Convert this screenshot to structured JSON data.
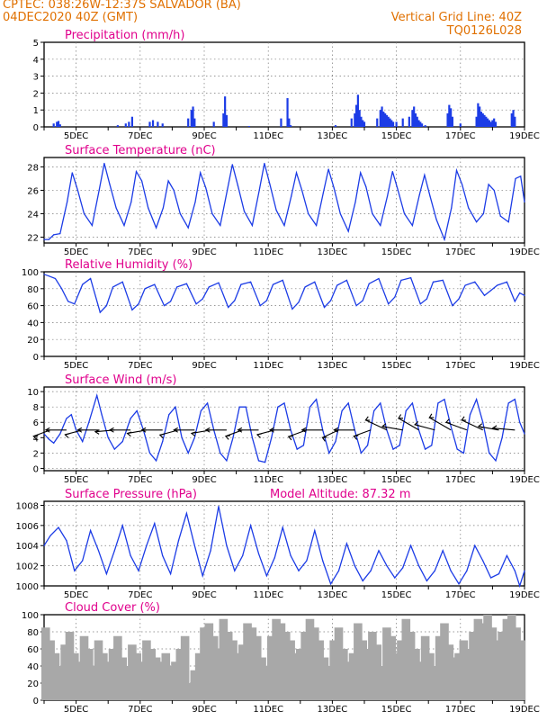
{
  "header": {
    "line1": "CPTEC:   038:26W-12:37S   SALVADOR (BA)",
    "line2": "04DEC2020 40Z (GMT)",
    "grid_note": "Vertical Grid Line: 40Z",
    "run_code": "TQ0126L028",
    "model_altitude": "Model Altitude: 87.32 m",
    "color_orange": "#e07000",
    "color_magenta": "#e0008c",
    "color_series": "#1c3ce6",
    "color_cloud": "#a8a8a8"
  },
  "x_axis": {
    "day_range": [
      4,
      19
    ],
    "tick_labels": [
      "5DEC",
      "7DEC",
      "9DEC",
      "11DEC",
      "13DEC",
      "15DEC",
      "17DEC",
      "19DEC"
    ],
    "tick_days": [
      5,
      7,
      9,
      11,
      13,
      15,
      17,
      19
    ]
  },
  "chart_data": [
    {
      "type": "bar",
      "title": "Precipitation (mm/h)",
      "ylim": [
        0,
        5
      ],
      "yticks": [
        "0",
        "1",
        "2",
        "3",
        "4",
        "5"
      ],
      "grid": true,
      "x": [
        4.3,
        4.4,
        4.45,
        4.5,
        6.3,
        6.55,
        6.65,
        6.75,
        7.3,
        7.4,
        7.55,
        7.7,
        8.5,
        8.6,
        8.65,
        8.7,
        9.3,
        9.6,
        9.65,
        9.7,
        10.4,
        11.4,
        11.6,
        11.65,
        11.7,
        13.1,
        13.6,
        13.7,
        13.75,
        13.8,
        13.85,
        13.9,
        13.95,
        14.0,
        14.4,
        14.5,
        14.55,
        14.6,
        14.65,
        14.7,
        14.75,
        14.8,
        14.85,
        14.9,
        15.0,
        15.2,
        15.4,
        15.5,
        15.55,
        15.6,
        15.65,
        15.7,
        15.75,
        15.8,
        15.9,
        16.6,
        16.65,
        16.7,
        16.75,
        17.0,
        17.5,
        17.55,
        17.6,
        17.65,
        17.7,
        17.75,
        17.8,
        17.85,
        17.9,
        17.95,
        18.0,
        18.05,
        18.1,
        18.6,
        18.65,
        18.7
      ],
      "values": [
        0.2,
        0.3,
        0.35,
        0.15,
        0.1,
        0.2,
        0.3,
        0.6,
        0.3,
        0.4,
        0.3,
        0.2,
        0.5,
        1.0,
        1.2,
        0.5,
        0.3,
        0.8,
        1.8,
        0.7,
        0.05,
        0.5,
        1.7,
        0.5,
        0.1,
        0.1,
        0.5,
        0.8,
        1.3,
        1.9,
        1.0,
        0.6,
        0.4,
        0.3,
        0.5,
        1.0,
        1.2,
        0.9,
        0.8,
        0.7,
        0.6,
        0.5,
        0.4,
        0.3,
        0.3,
        0.5,
        0.6,
        1.0,
        1.2,
        0.8,
        0.6,
        0.4,
        0.3,
        0.2,
        0.1,
        0.8,
        1.3,
        1.1,
        0.6,
        0.2,
        0.6,
        1.4,
        1.2,
        0.9,
        0.8,
        0.7,
        0.6,
        0.5,
        0.4,
        0.3,
        0.4,
        0.5,
        0.3,
        0.8,
        1.0,
        0.6
      ]
    },
    {
      "type": "line",
      "title": "Surface Temperature (nC)",
      "ylim": [
        21.5,
        28.8
      ],
      "yticks": [
        "22",
        "24",
        "26",
        "28"
      ],
      "ytick_values": [
        22,
        24,
        26,
        28
      ],
      "grid": true,
      "x": [
        4.0,
        4.15,
        4.3,
        4.5,
        4.72,
        4.88,
        5.05,
        5.25,
        5.5,
        5.72,
        5.88,
        6.05,
        6.25,
        6.5,
        6.72,
        6.88,
        7.05,
        7.25,
        7.5,
        7.72,
        7.88,
        8.05,
        8.25,
        8.5,
        8.72,
        8.88,
        9.05,
        9.25,
        9.5,
        9.72,
        9.88,
        10.05,
        10.25,
        10.5,
        10.72,
        10.88,
        11.05,
        11.25,
        11.5,
        11.72,
        11.88,
        12.05,
        12.25,
        12.5,
        12.72,
        12.88,
        13.05,
        13.25,
        13.5,
        13.72,
        13.88,
        14.05,
        14.25,
        14.5,
        14.72,
        14.88,
        15.05,
        15.25,
        15.5,
        15.72,
        15.88,
        16.05,
        16.25,
        16.5,
        16.72,
        16.88,
        17.05,
        17.25,
        17.5,
        17.72,
        17.88,
        18.05,
        18.25,
        18.5,
        18.72,
        18.88,
        19.0
      ],
      "values": [
        21.8,
        21.8,
        22.2,
        22.3,
        25.0,
        27.5,
        26.0,
        24.0,
        23.0,
        26.0,
        28.3,
        26.5,
        24.5,
        23.0,
        25.0,
        27.6,
        26.8,
        24.5,
        22.8,
        24.5,
        26.8,
        26.0,
        24.0,
        22.8,
        25.0,
        27.5,
        26.2,
        24.0,
        23.0,
        26.0,
        28.2,
        26.4,
        24.2,
        23.0,
        26.0,
        28.3,
        26.5,
        24.3,
        23.0,
        25.5,
        27.5,
        26.0,
        24.0,
        23.0,
        25.8,
        27.8,
        26.2,
        24.0,
        22.5,
        25.0,
        27.5,
        26.3,
        24.0,
        23.0,
        25.5,
        27.6,
        26.0,
        24.0,
        23.0,
        25.6,
        27.3,
        25.5,
        23.5,
        21.8,
        24.5,
        27.7,
        26.5,
        24.5,
        23.3,
        24.0,
        26.5,
        26.0,
        23.8,
        23.3,
        27.0,
        27.2,
        25.0
      ]
    },
    {
      "type": "line",
      "title": "Relative Humidity (%)",
      "ylim": [
        0,
        100
      ],
      "yticks": [
        "0",
        "20",
        "40",
        "60",
        "80",
        "100"
      ],
      "ytick_values": [
        0,
        20,
        40,
        60,
        80,
        100
      ],
      "grid": true,
      "x": [
        4.0,
        4.15,
        4.35,
        4.55,
        4.75,
        4.95,
        5.2,
        5.45,
        5.75,
        5.95,
        6.15,
        6.45,
        6.75,
        6.95,
        7.15,
        7.45,
        7.75,
        7.95,
        8.15,
        8.45,
        8.75,
        8.95,
        9.15,
        9.45,
        9.75,
        9.95,
        10.15,
        10.45,
        10.75,
        10.95,
        11.15,
        11.45,
        11.75,
        11.95,
        12.15,
        12.45,
        12.75,
        12.95,
        13.15,
        13.45,
        13.75,
        13.95,
        14.15,
        14.45,
        14.75,
        14.95,
        15.15,
        15.45,
        15.75,
        15.95,
        16.15,
        16.45,
        16.75,
        16.95,
        17.15,
        17.45,
        17.75,
        17.95,
        18.15,
        18.45,
        18.7,
        18.85,
        19.0
      ],
      "values": [
        97,
        95,
        92,
        80,
        65,
        62,
        85,
        92,
        52,
        60,
        82,
        88,
        55,
        62,
        80,
        85,
        60,
        65,
        82,
        86,
        62,
        68,
        82,
        87,
        58,
        66,
        85,
        88,
        60,
        66,
        85,
        90,
        56,
        64,
        82,
        88,
        58,
        66,
        84,
        90,
        60,
        66,
        86,
        92,
        62,
        70,
        90,
        93,
        62,
        68,
        88,
        90,
        60,
        68,
        84,
        88,
        72,
        78,
        84,
        88,
        65,
        75,
        72
      ]
    },
    {
      "type": "line",
      "title": "Surface Wind (m/s)",
      "ylim": [
        -0.3,
        10.6
      ],
      "yticks": [
        "0",
        "2",
        "4",
        "6",
        "8",
        "10"
      ],
      "ytick_values": [
        0,
        2,
        4,
        6,
        8,
        10
      ],
      "grid": true,
      "x": [
        4.0,
        4.15,
        4.3,
        4.5,
        4.7,
        4.85,
        5.0,
        5.2,
        5.4,
        5.65,
        5.8,
        6.0,
        6.2,
        6.45,
        6.7,
        6.9,
        7.1,
        7.3,
        7.5,
        7.7,
        7.9,
        8.1,
        8.3,
        8.5,
        8.7,
        8.9,
        9.1,
        9.3,
        9.5,
        9.7,
        9.9,
        10.1,
        10.3,
        10.5,
        10.7,
        10.9,
        11.1,
        11.3,
        11.5,
        11.7,
        11.9,
        12.1,
        12.3,
        12.5,
        12.7,
        12.9,
        13.1,
        13.3,
        13.5,
        13.7,
        13.9,
        14.1,
        14.3,
        14.5,
        14.7,
        14.9,
        15.1,
        15.3,
        15.5,
        15.7,
        15.9,
        16.1,
        16.3,
        16.5,
        16.7,
        16.9,
        17.1,
        17.3,
        17.5,
        17.7,
        17.9,
        18.1,
        18.3,
        18.5,
        18.7,
        18.85,
        19.0
      ],
      "values": [
        4.5,
        3.8,
        3.3,
        4.5,
        6.5,
        7.0,
        5.0,
        3.5,
        6.0,
        9.5,
        7.0,
        4.0,
        2.5,
        3.5,
        6.5,
        7.5,
        5.0,
        2.0,
        1.0,
        3.5,
        7.0,
        8.0,
        4.0,
        2.0,
        4.0,
        7.5,
        8.5,
        5.0,
        2.0,
        1.0,
        4.0,
        8.0,
        8.0,
        4.0,
        1.0,
        0.8,
        4.0,
        8.0,
        8.5,
        5.0,
        2.5,
        3.0,
        8.0,
        9.0,
        5.0,
        2.0,
        3.5,
        7.5,
        8.5,
        5.0,
        2.0,
        3.0,
        7.5,
        8.5,
        5.0,
        2.5,
        3.0,
        7.5,
        8.5,
        5.0,
        2.5,
        3.0,
        8.5,
        9.0,
        5.5,
        2.5,
        2.0,
        7.0,
        9.0,
        6.0,
        2.0,
        1.0,
        4.0,
        8.5,
        9.0,
        6.0,
        4.5
      ],
      "arrow_days": [
        4.2,
        4.7,
        5.2,
        5.7,
        6.2,
        6.7,
        7.2,
        7.7,
        8.2,
        8.7,
        9.2,
        9.7,
        10.2,
        10.7,
        11.2,
        11.7,
        12.2,
        12.7,
        13.2,
        13.7,
        14.2,
        14.7,
        15.2,
        15.7,
        16.2,
        16.7,
        17.2,
        17.7,
        18.2,
        18.7
      ],
      "arrow_speed": [
        4.0,
        5.0,
        4.0,
        5.0,
        4.5,
        5.0,
        4.6,
        5.0,
        4.5,
        5.0,
        4.5,
        5.0,
        4.0,
        5.0,
        4.0,
        5.0,
        4.5,
        5.0,
        4.0,
        5.0,
        4.0,
        6.0,
        5.0,
        6.0,
        5.0,
        6.5,
        5.5,
        6.0,
        5.0,
        5.5
      ],
      "arrow_dir_deg": [
        70,
        90,
        75,
        90,
        85,
        90,
        80,
        90,
        75,
        90,
        80,
        90,
        70,
        90,
        75,
        90,
        70,
        90,
        65,
        90,
        70,
        115,
        100,
        120,
        105,
        120,
        110,
        115,
        100,
        95
      ]
    },
    {
      "type": "line",
      "title": "Surface Pressure (hPa)",
      "ylim": [
        1000,
        1008.4
      ],
      "yticks": [
        "1000",
        "1002",
        "1004",
        "1006",
        "1008"
      ],
      "ytick_values": [
        1000,
        1002,
        1004,
        1006,
        1008
      ],
      "grid": true,
      "x": [
        4.0,
        4.2,
        4.45,
        4.7,
        4.95,
        5.2,
        5.45,
        5.7,
        5.95,
        6.2,
        6.45,
        6.7,
        6.95,
        7.2,
        7.45,
        7.7,
        7.95,
        8.2,
        8.45,
        8.7,
        8.95,
        9.2,
        9.45,
        9.7,
        9.95,
        10.2,
        10.45,
        10.7,
        10.95,
        11.2,
        11.45,
        11.7,
        11.95,
        12.2,
        12.45,
        12.7,
        12.95,
        13.2,
        13.45,
        13.7,
        13.95,
        14.2,
        14.45,
        14.7,
        14.95,
        15.2,
        15.45,
        15.7,
        15.95,
        16.2,
        16.45,
        16.7,
        16.95,
        17.2,
        17.45,
        17.7,
        17.95,
        18.2,
        18.45,
        18.7,
        18.85,
        19.0
      ],
      "values": [
        1004.0,
        1005.0,
        1005.8,
        1004.5,
        1001.5,
        1002.5,
        1005.5,
        1003.5,
        1001.2,
        1003.5,
        1006.0,
        1003.0,
        1001.5,
        1004.0,
        1006.2,
        1003.0,
        1001.2,
        1004.5,
        1007.2,
        1004.0,
        1001.0,
        1003.5,
        1007.9,
        1004.0,
        1001.5,
        1003.0,
        1006.0,
        1003.2,
        1001.0,
        1002.8,
        1005.8,
        1003.0,
        1001.5,
        1002.5,
        1005.5,
        1002.5,
        1000.2,
        1001.5,
        1004.2,
        1002.0,
        1000.5,
        1001.5,
        1003.5,
        1002.0,
        1000.8,
        1001.8,
        1004.0,
        1002.0,
        1000.5,
        1001.5,
        1003.5,
        1001.5,
        1000.2,
        1001.5,
        1004.0,
        1002.5,
        1000.8,
        1001.2,
        1003.0,
        1001.5,
        1000.0,
        1001.5
      ]
    },
    {
      "type": "bar",
      "title": "Cloud Cover (%)",
      "ylim": [
        0,
        100
      ],
      "yticks": [
        "0",
        "20",
        "40",
        "60",
        "80",
        "100"
      ],
      "grid": true,
      "x": [
        4.05,
        4.2,
        4.35,
        4.5,
        4.65,
        4.8,
        4.95,
        5.1,
        5.25,
        5.4,
        5.55,
        5.7,
        5.85,
        6.0,
        6.15,
        6.3,
        6.45,
        6.6,
        6.75,
        6.9,
        7.05,
        7.2,
        7.35,
        7.5,
        7.65,
        7.8,
        7.95,
        8.1,
        8.25,
        8.4,
        8.55,
        8.7,
        8.85,
        9.0,
        9.15,
        9.3,
        9.45,
        9.6,
        9.75,
        9.9,
        10.05,
        10.2,
        10.35,
        10.5,
        10.65,
        10.8,
        10.95,
        11.1,
        11.25,
        11.4,
        11.55,
        11.7,
        11.85,
        12.0,
        12.15,
        12.3,
        12.45,
        12.6,
        12.75,
        12.9,
        13.05,
        13.2,
        13.35,
        13.5,
        13.65,
        13.8,
        13.95,
        14.1,
        14.25,
        14.4,
        14.55,
        14.7,
        14.85,
        15.0,
        15.15,
        15.3,
        15.45,
        15.6,
        15.75,
        15.9,
        16.05,
        16.2,
        16.35,
        16.5,
        16.65,
        16.8,
        16.95,
        17.1,
        17.25,
        17.4,
        17.55,
        17.7,
        17.85,
        18.0,
        18.15,
        18.3,
        18.45,
        18.6,
        18.75,
        18.9
      ],
      "values": [
        85,
        70,
        55,
        40,
        65,
        80,
        55,
        45,
        75,
        60,
        40,
        70,
        55,
        45,
        60,
        75,
        50,
        40,
        65,
        55,
        45,
        70,
        60,
        50,
        45,
        55,
        40,
        45,
        60,
        75,
        20,
        35,
        55,
        85,
        90,
        75,
        60,
        95,
        80,
        70,
        55,
        65,
        90,
        85,
        75,
        50,
        40,
        75,
        95,
        90,
        80,
        70,
        55,
        60,
        80,
        95,
        85,
        70,
        50,
        40,
        70,
        85,
        60,
        45,
        55,
        90,
        70,
        60,
        80,
        65,
        40,
        85,
        75,
        55,
        70,
        95,
        80,
        60,
        45,
        75,
        55,
        40,
        75,
        90,
        65,
        50,
        55,
        70,
        60,
        80,
        95,
        90,
        100,
        85,
        70,
        80,
        95,
        100,
        85,
        70
      ]
    }
  ]
}
